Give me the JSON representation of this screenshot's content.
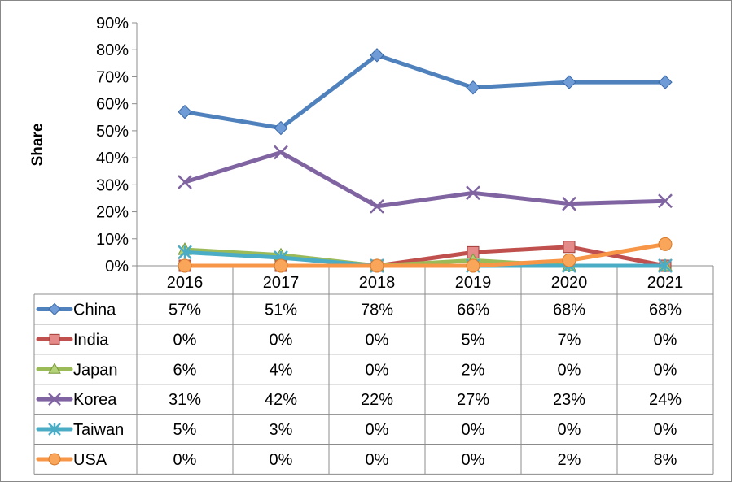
{
  "chart_data": {
    "type": "line",
    "title": "",
    "xlabel": "",
    "ylabel": "Share",
    "ylim": [
      0,
      90
    ],
    "yticks": [
      "0%",
      "10%",
      "20%",
      "30%",
      "40%",
      "50%",
      "60%",
      "70%",
      "80%",
      "90%"
    ],
    "categories": [
      "2016",
      "2017",
      "2018",
      "2019",
      "2020",
      "2021"
    ],
    "grid": false,
    "legend": "data-table-left",
    "series": [
      {
        "name": "China",
        "color": "#4F81BD",
        "marker": "diamond",
        "values": [
          57,
          51,
          78,
          66,
          68,
          68
        ],
        "labels": [
          "57%",
          "51%",
          "78%",
          "66%",
          "68%",
          "68%"
        ]
      },
      {
        "name": "India",
        "color": "#C0504D",
        "marker": "square",
        "values": [
          0,
          0,
          0,
          5,
          7,
          0
        ],
        "labels": [
          "0%",
          "0%",
          "0%",
          "5%",
          "7%",
          "0%"
        ]
      },
      {
        "name": "Japan",
        "color": "#9BBB59",
        "marker": "triangle",
        "values": [
          6,
          4,
          0,
          2,
          0,
          0
        ],
        "labels": [
          "6%",
          "4%",
          "0%",
          "2%",
          "0%",
          "0%"
        ]
      },
      {
        "name": "Korea",
        "color": "#8064A2",
        "marker": "x",
        "values": [
          31,
          42,
          22,
          27,
          23,
          24
        ],
        "labels": [
          "31%",
          "42%",
          "22%",
          "27%",
          "23%",
          "24%"
        ]
      },
      {
        "name": "Taiwan",
        "color": "#4BACC6",
        "marker": "star",
        "values": [
          5,
          3,
          0,
          0,
          0,
          0
        ],
        "labels": [
          "5%",
          "3%",
          "0%",
          "0%",
          "0%",
          "0%"
        ]
      },
      {
        "name": "USA",
        "color": "#F79646",
        "marker": "circle",
        "values": [
          0,
          0,
          0,
          0,
          2,
          8
        ],
        "labels": [
          "0%",
          "0%",
          "0%",
          "0%",
          "2%",
          "8%"
        ]
      }
    ]
  }
}
